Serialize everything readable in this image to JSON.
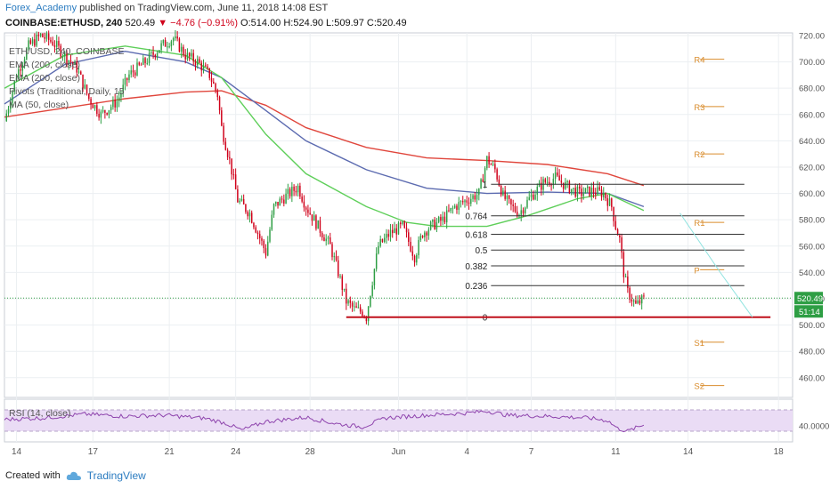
{
  "header": {
    "author": "Forex_Academy",
    "published_text": "published on TradingView.com, June 11, 2018 14:08 EST"
  },
  "symbol_line": {
    "symbol": "COINBASE:ETHUSD, 240",
    "last": "520.49",
    "change": "▼ −4.76 (−0.91%)",
    "ohlc": "O:514.00 H:524.90 L:509.97 C:520.49"
  },
  "legend": {
    "title": "ETH/USD, 240, COINBASE",
    "ema1": "EMA (200, close)",
    "ema2": "EMA (200, close)",
    "pivots": "Pivots (Traditional, Daily, 15",
    "ma": "MA (50, close)",
    "rsi": "RSI (14, close)"
  },
  "footer": {
    "created_with": "Created with",
    "brand": "TradingView"
  },
  "colors": {
    "up": "#2e9e44",
    "down": "#d0021b",
    "ema_red": "#e0463c",
    "ema_blue": "#5c6bb0",
    "ma_green": "#5fcf5a",
    "pivot": "#d98c2c",
    "support_line": "#c0101c",
    "rsi": "#8e44ad",
    "rsi_band": "#eadcf5",
    "price_label_bg": "#2e9e44",
    "axis_text": "#555555",
    "grid": "#eceff2"
  },
  "chart_data": {
    "type": "line",
    "title": "ETH/USD, 240, COINBASE",
    "price_axis": {
      "range": [
        445,
        722
      ],
      "ticks": [
        "720.00",
        "700.00",
        "680.00",
        "660.00",
        "640.00",
        "620.00",
        "600.00",
        "580.00",
        "560.00",
        "540.00",
        "520.00",
        "500.00",
        "480.00",
        "460.00"
      ],
      "tick_values": [
        720,
        700,
        680,
        660,
        640,
        620,
        600,
        580,
        560,
        540,
        520,
        500,
        480,
        460
      ]
    },
    "time_axis": {
      "labels": [
        "14",
        "17",
        "21",
        "24",
        "28",
        "Jun",
        "4",
        "7",
        "11",
        "14",
        "18"
      ],
      "label_index": [
        6,
        44,
        82,
        115,
        152,
        196,
        230,
        262,
        304,
        340,
        385
      ]
    },
    "last_price_label": "520.49",
    "countdown_label": "51:14",
    "ohlc_samples": {
      "note_index": "bar index (4h bars)",
      "closes": [
        [
          0,
          655
        ],
        [
          6,
          690
        ],
        [
          12,
          712
        ],
        [
          18,
          720
        ],
        [
          24,
          715
        ],
        [
          30,
          705
        ],
        [
          36,
          695
        ],
        [
          42,
          672
        ],
        [
          48,
          660
        ],
        [
          56,
          670
        ],
        [
          62,
          690
        ],
        [
          70,
          700
        ],
        [
          78,
          712
        ],
        [
          84,
          718
        ],
        [
          90,
          705
        ],
        [
          96,
          700
        ],
        [
          102,
          690
        ],
        [
          106,
          675
        ],
        [
          108,
          650
        ],
        [
          112,
          625
        ],
        [
          116,
          595
        ],
        [
          122,
          585
        ],
        [
          126,
          570
        ],
        [
          130,
          555
        ],
        [
          134,
          590
        ],
        [
          140,
          598
        ],
        [
          146,
          605
        ],
        [
          150,
          590
        ],
        [
          154,
          580
        ],
        [
          158,
          570
        ],
        [
          162,
          560
        ],
        [
          166,
          540
        ],
        [
          170,
          518
        ],
        [
          174,
          512
        ],
        [
          178,
          510
        ],
        [
          180,
          506
        ],
        [
          182,
          525
        ],
        [
          186,
          560
        ],
        [
          192,
          570
        ],
        [
          198,
          575
        ],
        [
          204,
          552
        ],
        [
          208,
          570
        ],
        [
          212,
          575
        ],
        [
          218,
          580
        ],
        [
          224,
          590
        ],
        [
          230,
          595
        ],
        [
          236,
          600
        ],
        [
          240,
          626
        ],
        [
          244,
          618
        ],
        [
          248,
          598
        ],
        [
          252,
          590
        ],
        [
          256,
          585
        ],
        [
          262,
          598
        ],
        [
          268,
          608
        ],
        [
          274,
          612
        ],
        [
          280,
          605
        ],
        [
          286,
          600
        ],
        [
          292,
          602
        ],
        [
          298,
          600
        ],
        [
          302,
          590
        ],
        [
          304,
          575
        ],
        [
          306,
          565
        ],
        [
          308,
          540
        ],
        [
          310,
          525
        ],
        [
          314,
          515
        ],
        [
          318,
          520
        ]
      ]
    },
    "series": [
      {
        "name": "EMA (200, close)",
        "points": [
          [
            0,
            658
          ],
          [
            30,
            665
          ],
          [
            60,
            672
          ],
          [
            90,
            677
          ],
          [
            108,
            678
          ],
          [
            130,
            667
          ],
          [
            150,
            650
          ],
          [
            180,
            635
          ],
          [
            210,
            627
          ],
          [
            240,
            625
          ],
          [
            270,
            622
          ],
          [
            300,
            615
          ],
          [
            318,
            606
          ]
        ]
      },
      {
        "name": "EMA (200, close)",
        "points": [
          [
            0,
            668
          ],
          [
            30,
            698
          ],
          [
            60,
            708
          ],
          [
            90,
            700
          ],
          [
            108,
            688
          ],
          [
            130,
            663
          ],
          [
            150,
            640
          ],
          [
            180,
            618
          ],
          [
            210,
            604
          ],
          [
            240,
            600
          ],
          [
            270,
            601
          ],
          [
            300,
            600
          ],
          [
            318,
            590
          ]
        ]
      },
      {
        "name": "MA (50, close)",
        "points": [
          [
            0,
            680
          ],
          [
            30,
            705
          ],
          [
            60,
            712
          ],
          [
            90,
            705
          ],
          [
            108,
            688
          ],
          [
            130,
            645
          ],
          [
            150,
            615
          ],
          [
            180,
            590
          ],
          [
            200,
            578
          ],
          [
            215,
            575
          ],
          [
            240,
            575
          ],
          [
            260,
            583
          ],
          [
            285,
            596
          ],
          [
            300,
            600
          ],
          [
            318,
            587
          ]
        ]
      }
    ],
    "fibonacci": [
      {
        "label": "1",
        "value": 607
      },
      {
        "label": "0.764",
        "value": 583
      },
      {
        "label": "0.618",
        "value": 569
      },
      {
        "label": "0.5",
        "value": 557
      },
      {
        "label": "0.382",
        "value": 545
      },
      {
        "label": "0.236",
        "value": 530
      },
      {
        "label": "0",
        "value": 506
      }
    ],
    "pivots": [
      {
        "label": "R4",
        "value": 702
      },
      {
        "label": "R3",
        "value": 666
      },
      {
        "label": "R2",
        "value": 630
      },
      {
        "label": "R1",
        "value": 578
      },
      {
        "label": "P",
        "value": 542
      },
      {
        "label": "S1",
        "value": 487
      },
      {
        "label": "S2",
        "value": 454
      }
    ],
    "support_line_value": 506,
    "rsi": {
      "axis_label": "40.0000",
      "band": [
        30,
        70
      ],
      "points": [
        [
          0,
          52
        ],
        [
          20,
          55
        ],
        [
          40,
          62
        ],
        [
          60,
          58
        ],
        [
          80,
          60
        ],
        [
          100,
          54
        ],
        [
          110,
          45
        ],
        [
          118,
          32
        ],
        [
          130,
          48
        ],
        [
          150,
          56
        ],
        [
          165,
          44
        ],
        [
          178,
          38
        ],
        [
          190,
          55
        ],
        [
          210,
          60
        ],
        [
          230,
          64
        ],
        [
          240,
          68
        ],
        [
          250,
          60
        ],
        [
          270,
          58
        ],
        [
          290,
          55
        ],
        [
          300,
          50
        ],
        [
          305,
          35
        ],
        [
          310,
          30
        ],
        [
          318,
          42
        ]
      ]
    }
  }
}
